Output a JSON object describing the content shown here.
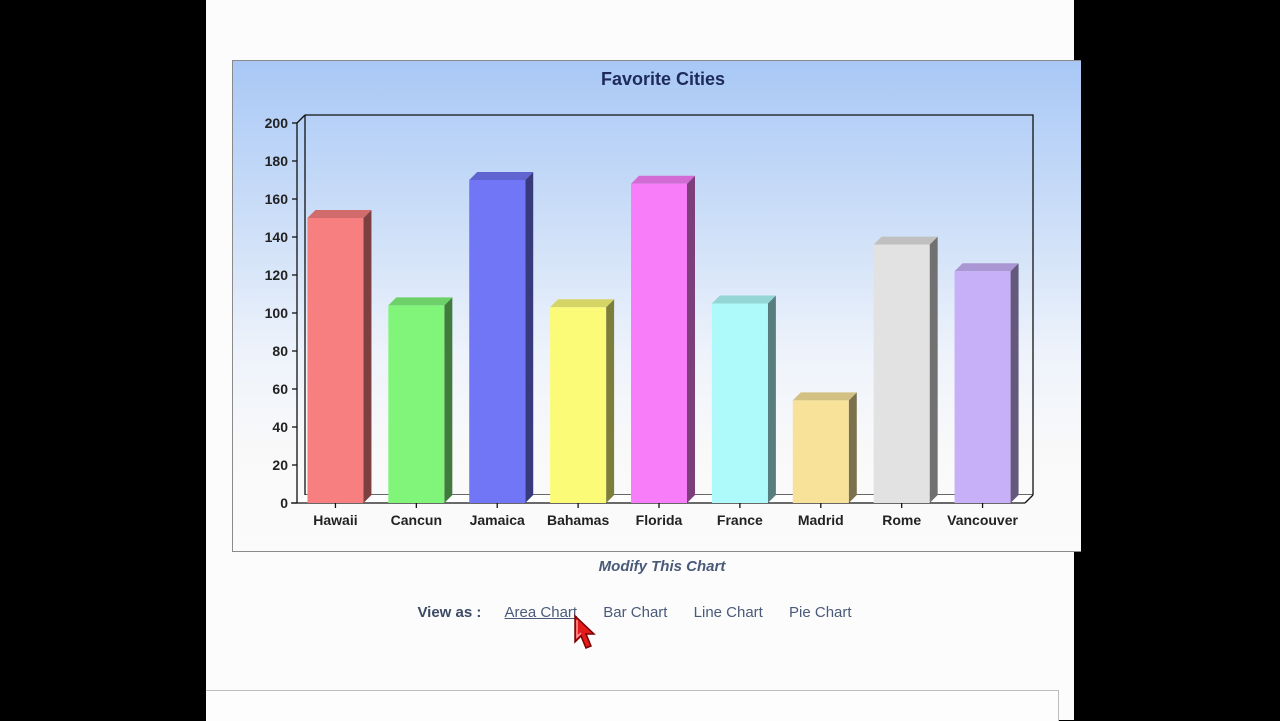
{
  "chart_data": {
    "type": "bar",
    "title": "Favorite Cities",
    "categories": [
      "Hawaii",
      "Cancun",
      "Jamaica",
      "Bahamas",
      "Florida",
      "France",
      "Madrid",
      "Rome",
      "Vancouver"
    ],
    "values": [
      150,
      104,
      170,
      103,
      168,
      105,
      54,
      136,
      122
    ],
    "colors": [
      "#f77f7f",
      "#80f57a",
      "#7076f6",
      "#fbfb78",
      "#f77ef8",
      "#aefafb",
      "#f8e29a",
      "#e2e2e2",
      "#c8b0f8"
    ],
    "xlabel": "",
    "ylabel": "",
    "ylim": [
      0,
      200
    ],
    "yticks": [
      0,
      20,
      40,
      60,
      80,
      100,
      120,
      140,
      160,
      180,
      200
    ],
    "grid": false,
    "legend": "none",
    "style": "3d-bars"
  },
  "chart": {
    "title": "Favorite Cities"
  },
  "modify_link": "Modify This Chart",
  "view_as": {
    "label": "View as :",
    "options": [
      "Area Chart",
      "Bar Chart",
      "Line Chart",
      "Pie Chart"
    ],
    "active": "Area Chart"
  }
}
